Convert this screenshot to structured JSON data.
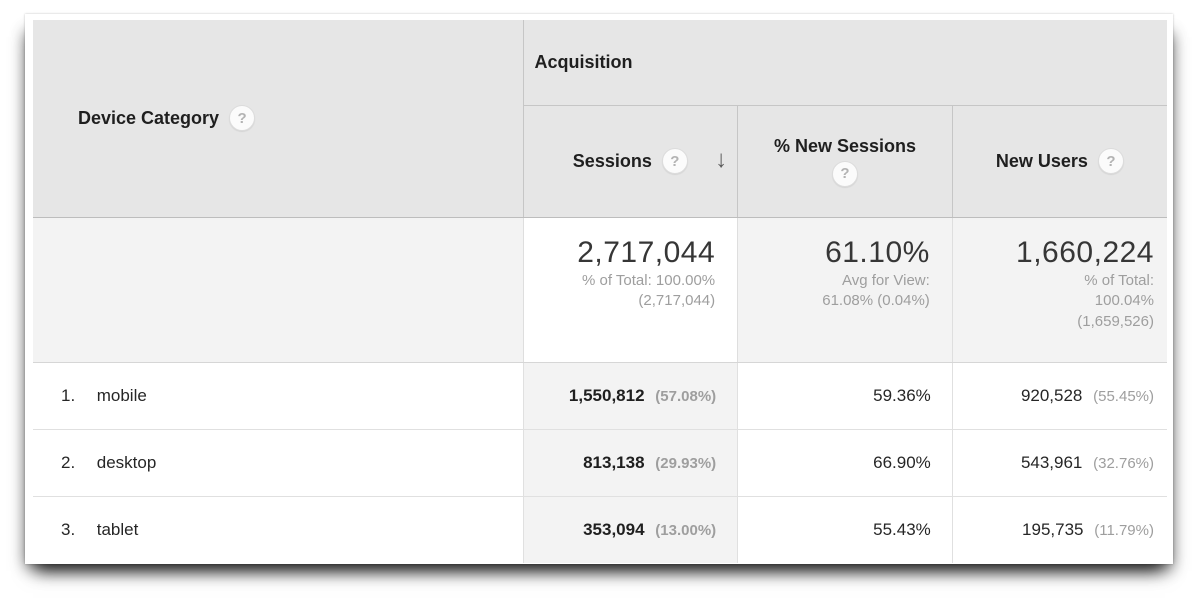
{
  "table": {
    "dimension_header": "Device Category",
    "group_header": "Acquisition",
    "columns": {
      "sessions": "Sessions",
      "new_sessions": "% New Sessions",
      "new_users": "New Users"
    },
    "help_icon": "?",
    "sort": {
      "column": "Sessions",
      "direction": "descending",
      "arrow": "↓"
    },
    "summary": {
      "sessions": {
        "value": "2,717,044",
        "sub": [
          "% of Total: 100.00%",
          "(2,717,044)"
        ]
      },
      "new_sessions": {
        "value": "61.10%",
        "sub": [
          "Avg for View:",
          "61.08% (0.04%)"
        ]
      },
      "new_users": {
        "value": "1,660,224",
        "sub": [
          "% of Total:",
          "100.04%",
          "(1,659,526)"
        ]
      }
    },
    "rows": [
      {
        "rank": "1.",
        "device": "mobile",
        "sessions": "1,550,812",
        "sessions_pct": "(57.08%)",
        "new_sessions_pct": "59.36%",
        "new_users": "920,528",
        "new_users_pct": "(55.45%)"
      },
      {
        "rank": "2.",
        "device": "desktop",
        "sessions": "813,138",
        "sessions_pct": "(29.93%)",
        "new_sessions_pct": "66.90%",
        "new_users": "543,961",
        "new_users_pct": "(32.76%)"
      },
      {
        "rank": "3.",
        "device": "tablet",
        "sessions": "353,094",
        "sessions_pct": "(13.00%)",
        "new_sessions_pct": "55.43%",
        "new_users": "195,735",
        "new_users_pct": "(11.79%)"
      }
    ]
  },
  "colors": {
    "header_bg": "#e6e6e6",
    "summary_bg": "#f3f3f3",
    "sorted_column_bg": "#f3f3f3",
    "border_strong": "#c6c6c6",
    "border_light": "#e0e0e0",
    "text_primary": "#262626",
    "text_secondary": "#9e9e9e"
  }
}
